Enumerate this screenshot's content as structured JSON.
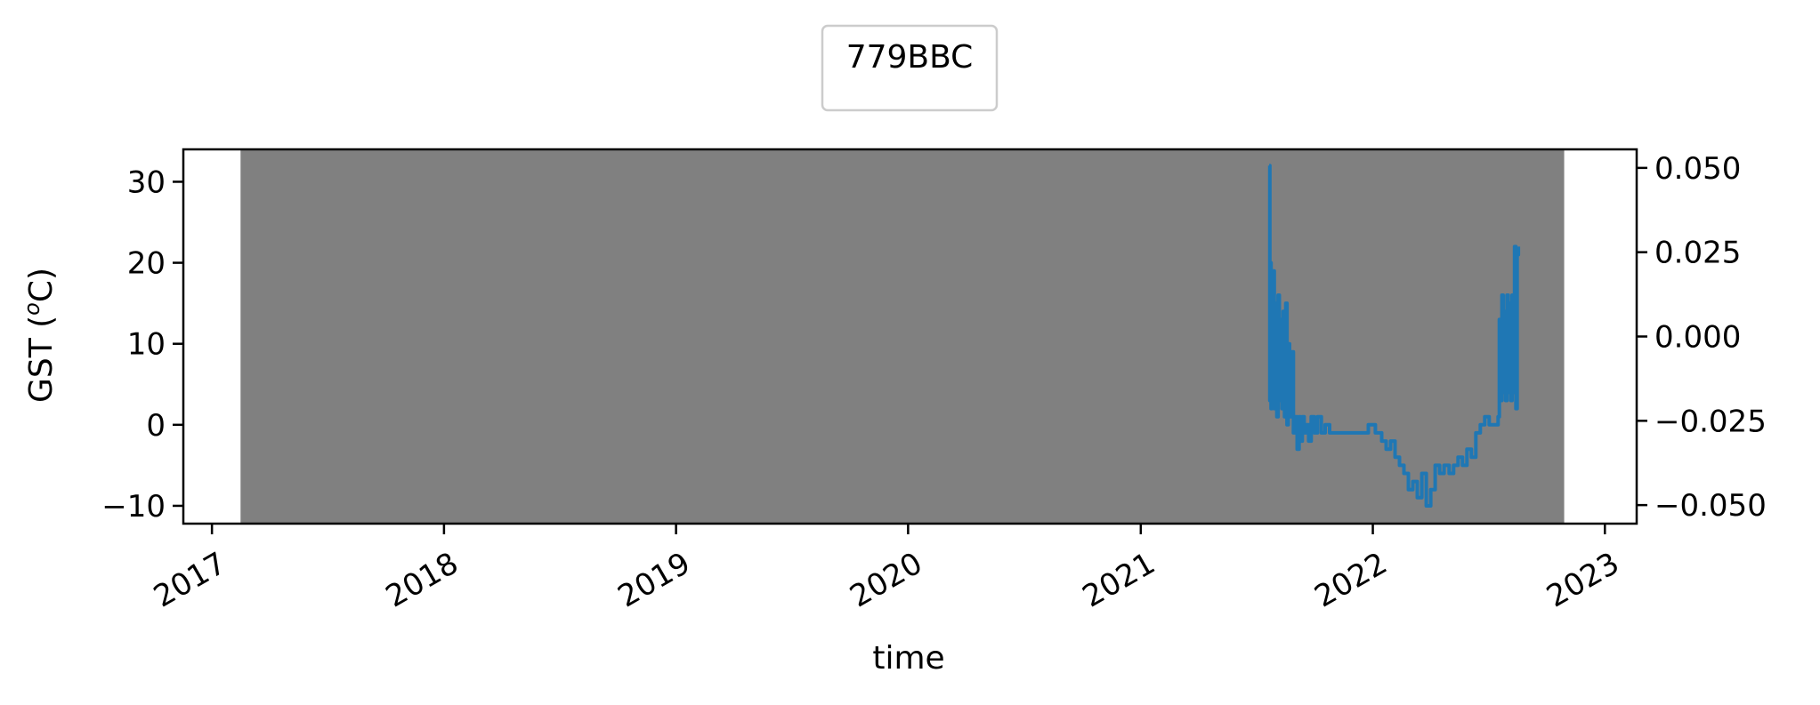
{
  "chart_data": {
    "type": "line",
    "title": "",
    "xlabel": "time",
    "ylabel": "GST (ᵒC)",
    "ylabel_parts": {
      "before": "GST (",
      "sup": "o",
      "after": "C)"
    },
    "legend": {
      "entries": [
        "779BBC"
      ],
      "placement": "top-center"
    },
    "x_ticks": [
      "2017",
      "2018",
      "2019",
      "2020",
      "2021",
      "2022",
      "2023"
    ],
    "xlim": [
      "2016-11-17",
      "2023-02-20"
    ],
    "ylim": [
      -12.2,
      34.0
    ],
    "y_ticks": [
      -10,
      0,
      10,
      20,
      30
    ],
    "y_tick_labels": [
      "−10",
      "0",
      "10",
      "20",
      "30"
    ],
    "y2lim": [
      -0.0555,
      0.0555
    ],
    "y2_ticks": [
      -0.05,
      -0.025,
      0,
      0.025,
      0.05
    ],
    "y2_tick_labels": [
      "−0.050",
      "−0.025",
      "0.000",
      "0.025",
      "0.050"
    ],
    "grid": false,
    "shaded_region": {
      "start": "2017-02-15",
      "end": "2022-10-29",
      "color": "#808080"
    },
    "line_color": "#1f77b4",
    "series": [
      {
        "x": [
          "2021-07-22",
          "2021-07-23",
          "2021-07-24",
          "2021-07-25",
          "2021-07-26",
          "2021-07-27",
          "2021-07-28",
          "2021-07-30",
          "2021-08-01",
          "2021-08-03",
          "2021-08-05",
          "2021-08-07",
          "2021-08-09",
          "2021-08-11",
          "2021-08-13",
          "2021-08-15",
          "2021-08-17",
          "2021-08-19",
          "2021-08-21",
          "2021-08-23",
          "2021-08-26",
          "2021-08-29",
          "2021-09-01",
          "2021-09-04",
          "2021-09-07",
          "2021-09-09",
          "2021-09-12",
          "2021-09-15",
          "2021-09-18",
          "2021-09-22",
          "2021-09-26",
          "2021-10-01",
          "2021-10-06",
          "2021-10-12",
          "2021-10-18",
          "2021-10-25",
          "2021-11-01",
          "2021-11-10",
          "2021-11-20",
          "2021-12-01",
          "2021-12-15",
          "2021-12-25",
          "2022-01-05",
          "2022-01-15",
          "2022-01-22",
          "2022-01-29",
          "2022-02-05",
          "2022-02-12",
          "2022-02-19",
          "2022-02-26",
          "2022-03-05",
          "2022-03-12",
          "2022-03-19",
          "2022-03-26",
          "2022-04-02",
          "2022-04-09",
          "2022-04-16",
          "2022-04-23",
          "2022-05-01",
          "2022-05-08",
          "2022-05-15",
          "2022-05-22",
          "2022-05-29",
          "2022-06-05",
          "2022-06-12",
          "2022-06-19",
          "2022-06-26",
          "2022-07-03",
          "2022-07-07",
          "2022-07-09",
          "2022-07-11",
          "2022-07-13",
          "2022-07-15",
          "2022-07-17",
          "2022-07-19",
          "2022-07-21",
          "2022-07-23",
          "2022-07-25",
          "2022-07-27",
          "2022-07-29",
          "2022-07-31",
          "2022-08-02",
          "2022-08-04",
          "2022-08-06",
          "2022-08-08",
          "2022-08-10",
          "2022-08-12",
          "2022-08-14",
          "2022-08-16",
          "2022-08-18"
        ],
        "y": [
          32,
          3,
          20,
          2,
          18,
          5,
          19,
          2,
          15,
          1,
          16,
          3,
          13,
          2,
          14,
          1,
          15,
          0,
          10,
          1,
          9,
          -1,
          1,
          -3,
          1,
          -2,
          1,
          -1,
          0,
          -2,
          1,
          -1,
          1,
          -1,
          0,
          -1,
          -1,
          -1,
          -1,
          -1,
          -1,
          0,
          -1,
          -2,
          -3,
          -2,
          -4,
          -5,
          -6,
          -8,
          -7,
          -9,
          -6,
          -10,
          -8,
          -5,
          -6,
          -5,
          -6,
          -5,
          -4,
          -5,
          -3,
          -4,
          -1,
          0,
          1,
          0,
          0,
          0,
          0,
          0,
          0,
          1,
          13,
          3,
          16,
          4,
          14,
          3,
          16,
          4,
          15,
          3,
          16,
          4,
          22,
          2,
          21,
          22
        ]
      }
    ]
  }
}
